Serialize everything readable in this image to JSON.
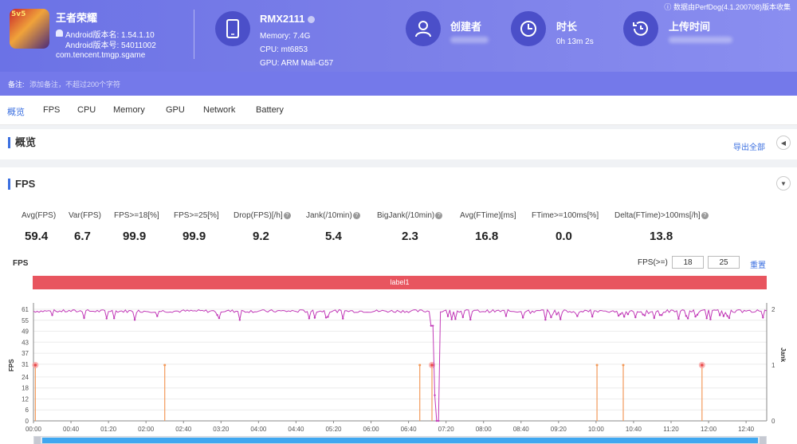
{
  "app": {
    "icon_badge": "5v5",
    "name": "王者荣耀",
    "version_name": "Android版本名: 1.54.1.10",
    "version_code": "Android版本号: 54011002",
    "package": "com.tencent.tmgp.sgame"
  },
  "device": {
    "name": "RMX2111",
    "memory": "Memory: 7.4G",
    "cpu": "CPU: mt6853",
    "gpu": "GPU: ARM Mali-G57"
  },
  "stats": {
    "creator_title": "创建者",
    "duration_title": "时长",
    "duration_value": "0h 13m 2s",
    "upload_title": "上传时间"
  },
  "source_note": "数据由PerfDog(4.1.200708)版本收集",
  "remark": {
    "label": "备注:",
    "placeholder": "添加备注，不超过200个字符"
  },
  "tabs": [
    "概览",
    "FPS",
    "CPU",
    "Memory",
    "GPU",
    "Network",
    "Battery"
  ],
  "overview": {
    "title": "概览",
    "export": "导出全部"
  },
  "fps_section": {
    "title": "FPS",
    "metrics": [
      {
        "label": "Avg(FPS)",
        "value": "59.4"
      },
      {
        "label": "Var(FPS)",
        "value": "6.7"
      },
      {
        "label": "FPS>=18[%]",
        "value": "99.9"
      },
      {
        "label": "FPS>=25[%]",
        "value": "99.9"
      },
      {
        "label": "Drop(FPS)[/h]",
        "value": "9.2"
      },
      {
        "label": "Jank(/10min)",
        "value": "5.4"
      },
      {
        "label": "BigJank(/10min)",
        "value": "2.3"
      },
      {
        "label": "Avg(FTime)[ms]",
        "value": "16.8"
      },
      {
        "label": "FTime>=100ms[%]",
        "value": "0.0"
      },
      {
        "label": "Delta(FTime)>100ms[/h]",
        "value": "13.8"
      }
    ],
    "chart_label": "FPS",
    "fps_threshold_label": "FPS(>=)",
    "fps_threshold_1": "18",
    "fps_threshold_2": "25",
    "reset": "重置",
    "label_bar": "label1"
  },
  "chart_data": {
    "type": "line",
    "ylabel": "FPS",
    "y2label": "Jank",
    "y_ticks": [
      0,
      6,
      12,
      18,
      24,
      31,
      37,
      43,
      49,
      55,
      61
    ],
    "y2_ticks": [
      0,
      1,
      2
    ],
    "ylim": [
      0,
      61
    ],
    "y2lim": [
      0,
      2
    ],
    "x_ticks": [
      "00:00",
      "00:40",
      "01:20",
      "02:00",
      "02:40",
      "03:20",
      "04:00",
      "04:40",
      "05:20",
      "06:00",
      "06:40",
      "07:20",
      "08:00",
      "08:40",
      "09:20",
      "10:00",
      "10:40",
      "11:20",
      "12:00",
      "12:40"
    ],
    "xlim_seconds": [
      0,
      782
    ],
    "series": [
      {
        "name": "",
        "color": "#c23bb8",
        "kind": "fps_line",
        "baseline": 60,
        "noise": [
          55,
          61
        ],
        "dips": [
          [
            425,
            52
          ],
          [
            429,
            14
          ],
          [
            431,
            0
          ]
        ]
      },
      {
        "name": "",
        "color": "#f39a5a",
        "kind": "jank_spikes",
        "x_seconds": [
          2,
          140,
          412,
          425,
          601,
          629,
          713
        ],
        "big_jank_x_seconds": [
          2,
          425,
          713
        ]
      }
    ],
    "grid": "horizontal"
  }
}
